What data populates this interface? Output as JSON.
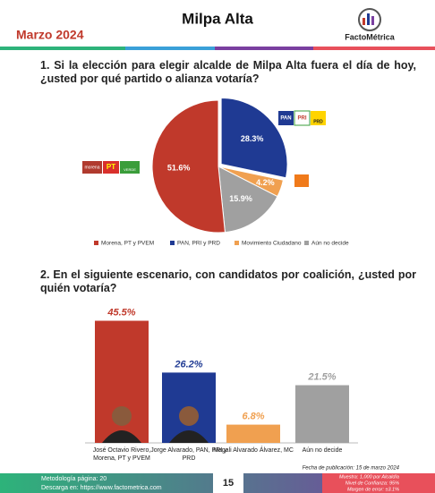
{
  "header": {
    "title": "Milpa Alta",
    "date": "Marzo 2024",
    "brand": "FactoMétrica"
  },
  "logos": {
    "left": [
      "morena",
      "PT",
      "VERDE"
    ],
    "right": [
      "PAN",
      "PRI",
      "PRD"
    ]
  },
  "chart_data": [
    {
      "type": "pie",
      "title": "1. Si la elección para elegir alcalde de Milpa Alta fuera el día de hoy, ¿usted por qué partido o alianza votaría?",
      "categories": [
        "Morena, PT y PVEM",
        "PAN, PRI y PRD",
        "Movimiento Ciudadano",
        "Aún no decide"
      ],
      "values": [
        51.6,
        28.3,
        4.2,
        15.9
      ],
      "value_labels": [
        "51.6%",
        "28.3%",
        "4.2%",
        "15.9%"
      ],
      "colors": [
        "#c0392b",
        "#1f3a93",
        "#f0a050",
        "#a0a0a0"
      ]
    },
    {
      "type": "bar",
      "title": "2. En el siguiente escenario, con candidatos por coalición, ¿usted por quién votaría?",
      "categories": [
        "José Octavio Rivero, Morena, PT y PVEM",
        "Jorge Alvarado, PAN, PRI y PRD",
        "Magali Alvarado Álvarez, MC",
        "Aún no decide"
      ],
      "values": [
        45.5,
        26.2,
        6.8,
        21.5
      ],
      "value_labels": [
        "45.5%",
        "26.2%",
        "6.8%",
        "21.5%"
      ],
      "colors": [
        "#c0392b",
        "#1f3a93",
        "#f0a050",
        "#a0a0a0"
      ]
    }
  ],
  "footer": {
    "date": "Fecha de publicación: 15 de marzo 2024",
    "method": "Metodología página: 20",
    "download": "Descarga en: https://www.factometrica.com",
    "page": "15",
    "sample": "Muestra: 1,000 por Alcaldía",
    "confidence": "Nivel de Confianza: 95%",
    "error": "Margen de error: ±3.1%"
  }
}
